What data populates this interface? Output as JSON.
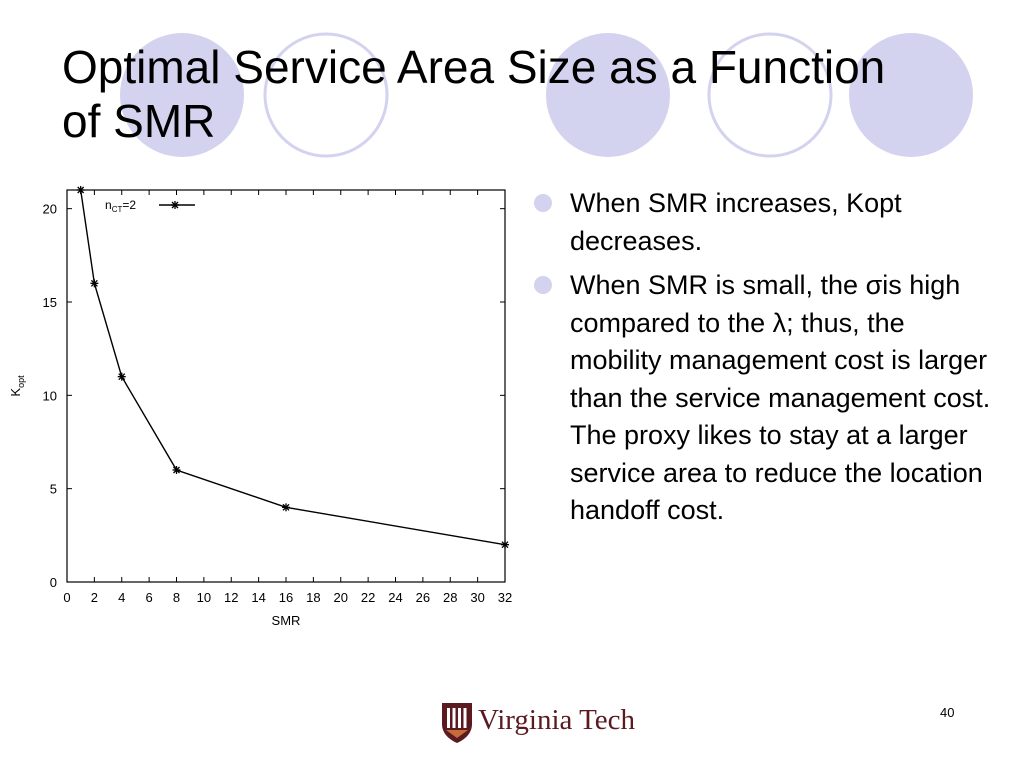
{
  "slide": {
    "title_lines": [
      "Optimal Service Area Size as a Function",
      "of SMR"
    ],
    "bullets": [
      "When SMR increases, Kopt decreases.",
      "When SMR is small, the σis high compared to the λ; thus, the mobility management cost is larger than the service management cost. The proxy likes to stay at a larger service area to reduce the location handoff cost."
    ],
    "page_number": "40",
    "logo_text": "Virginia Tech",
    "colors": {
      "decor_circle": "#d4d3ef",
      "bullet": "#d4d3ef",
      "logo": "#5b1a20"
    }
  },
  "chart_data": {
    "type": "line",
    "title": "",
    "xlabel": "SMR",
    "ylabel": "K",
    "ylabel_sub": "opt",
    "xlim": [
      0,
      32
    ],
    "ylim": [
      0,
      21
    ],
    "xticks": [
      "0",
      "2",
      "4",
      "6",
      "8",
      "10",
      "12",
      "14",
      "16",
      "18",
      "20",
      "22",
      "24",
      "26",
      "28",
      "30",
      "32"
    ],
    "yticks": [
      "0",
      "5",
      "10",
      "15",
      "20"
    ],
    "legend_position": "top-left",
    "series": [
      {
        "name": "n",
        "name_sub": "CT",
        "name_suffix": "=2",
        "marker": "asterisk",
        "x": [
          1,
          2,
          4,
          8,
          16,
          32
        ],
        "y": [
          21,
          16,
          11,
          6,
          4,
          2
        ]
      }
    ]
  }
}
